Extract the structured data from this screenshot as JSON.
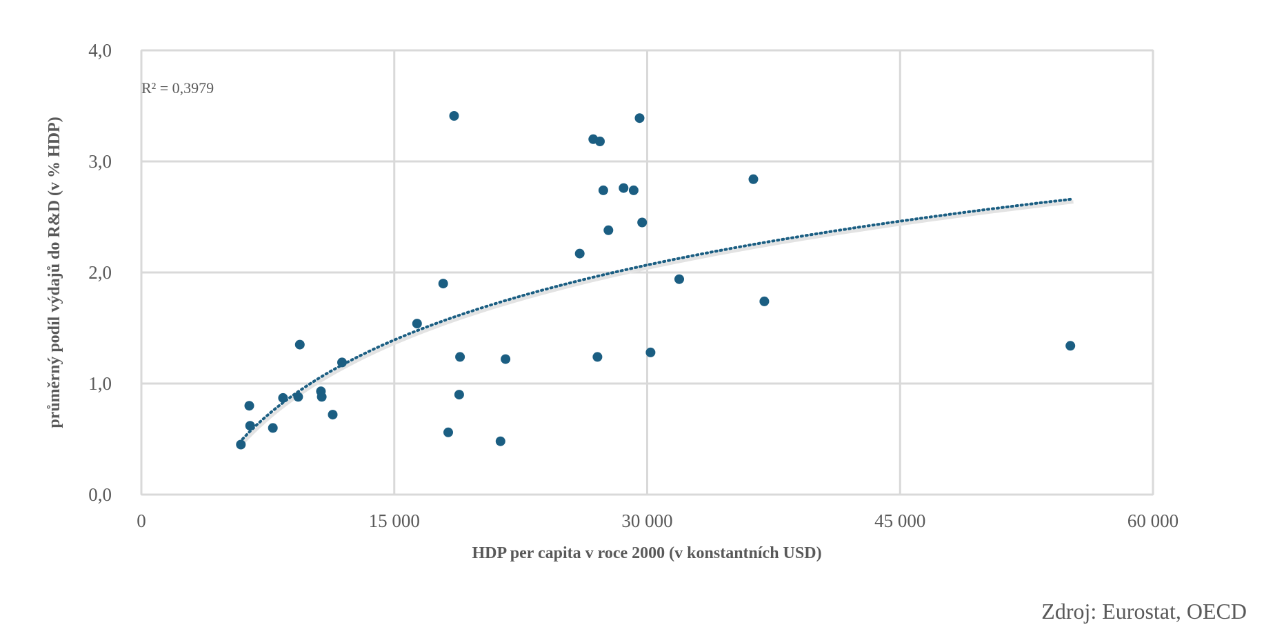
{
  "chart_data": {
    "type": "scatter",
    "xlabel": "HDP per capita v roce 2000 (v konstantních USD)",
    "ylabel": "průměrný podíl výdajů do R&D (v % HDP)",
    "xlim": [
      0,
      60000
    ],
    "ylim": [
      0,
      4
    ],
    "x_ticks": [
      0,
      15000,
      30000,
      45000,
      60000
    ],
    "x_tick_labels": [
      "0",
      "15 000",
      "30 000",
      "45 000",
      "60 000"
    ],
    "y_ticks": [
      0,
      1,
      2,
      3,
      4
    ],
    "y_tick_labels": [
      "0,0",
      "1,0",
      "2,0",
      "3,0",
      "4,0"
    ],
    "grid": true,
    "annotation": "R² = 0,3979",
    "source": "Zdroj: Eurostat, OECD",
    "colors": {
      "points": "#1b5e82",
      "trendline": "#1b5e82",
      "grid": "#d9d9d9"
    },
    "trendline": {
      "type": "logarithmic",
      "a": 1.7,
      "b": 8.1,
      "x_start": 6000,
      "x_end": 55200
    },
    "points": [
      {
        "x": 5900,
        "y": 0.45
      },
      {
        "x": 6400,
        "y": 0.8
      },
      {
        "x": 6450,
        "y": 0.62
      },
      {
        "x": 7800,
        "y": 0.6
      },
      {
        "x": 8400,
        "y": 0.87
      },
      {
        "x": 9300,
        "y": 0.88
      },
      {
        "x": 9400,
        "y": 1.35
      },
      {
        "x": 10650,
        "y": 0.93
      },
      {
        "x": 10700,
        "y": 0.88
      },
      {
        "x": 11350,
        "y": 0.72
      },
      {
        "x": 11900,
        "y": 1.19
      },
      {
        "x": 16350,
        "y": 1.54
      },
      {
        "x": 17900,
        "y": 1.9
      },
      {
        "x": 18200,
        "y": 0.56
      },
      {
        "x": 18550,
        "y": 3.41
      },
      {
        "x": 18850,
        "y": 0.9
      },
      {
        "x": 18900,
        "y": 1.24
      },
      {
        "x": 21300,
        "y": 0.48
      },
      {
        "x": 21600,
        "y": 1.22
      },
      {
        "x": 26000,
        "y": 2.17
      },
      {
        "x": 26800,
        "y": 3.2
      },
      {
        "x": 27050,
        "y": 1.24
      },
      {
        "x": 27200,
        "y": 3.18
      },
      {
        "x": 27400,
        "y": 2.74
      },
      {
        "x": 27700,
        "y": 2.38
      },
      {
        "x": 28600,
        "y": 2.76
      },
      {
        "x": 29200,
        "y": 2.74
      },
      {
        "x": 29550,
        "y": 3.39
      },
      {
        "x": 29700,
        "y": 2.45
      },
      {
        "x": 30200,
        "y": 1.28
      },
      {
        "x": 31900,
        "y": 1.94
      },
      {
        "x": 36300,
        "y": 2.84
      },
      {
        "x": 36950,
        "y": 1.74
      },
      {
        "x": 55100,
        "y": 1.34
      }
    ]
  }
}
